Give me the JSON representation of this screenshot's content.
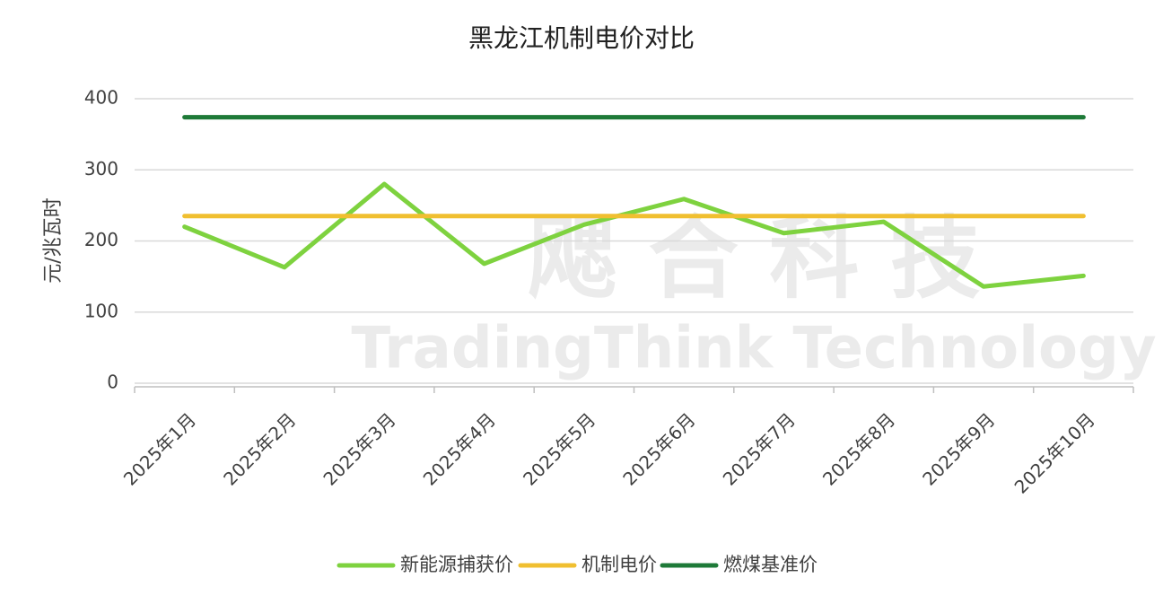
{
  "chart_data": {
    "type": "line",
    "title": "黑龙江机制电价对比",
    "ylabel": "元/兆瓦时",
    "watermark": "飔 合 科 技",
    "watermark_subtitle": "TradingThink Technology",
    "categories": [
      "2025年1月",
      "2025年2月",
      "2025年3月",
      "2025年4月",
      "2025年5月",
      "2025年6月",
      "2025年7月",
      "2025年8月",
      "2025年9月",
      "2025年10月"
    ],
    "series": [
      {
        "name": "新能源捕获价",
        "color": "#7ed23f",
        "values": [
          220,
          163,
          280,
          168,
          223,
          259,
          211,
          227,
          136,
          151
        ]
      },
      {
        "name": "机制电价",
        "color": "#f0bf30",
        "values": [
          235,
          235,
          235,
          235,
          235,
          235,
          235,
          235,
          235,
          235
        ]
      },
      {
        "name": "燃煤基准价",
        "color": "#1e7a38",
        "values": [
          374,
          374,
          374,
          374,
          374,
          374,
          374,
          374,
          374,
          374
        ]
      }
    ],
    "ylim": [
      0,
      400
    ],
    "yticks": [
      0,
      100,
      200,
      300,
      400
    ],
    "grid": true,
    "legend": "bottom"
  }
}
